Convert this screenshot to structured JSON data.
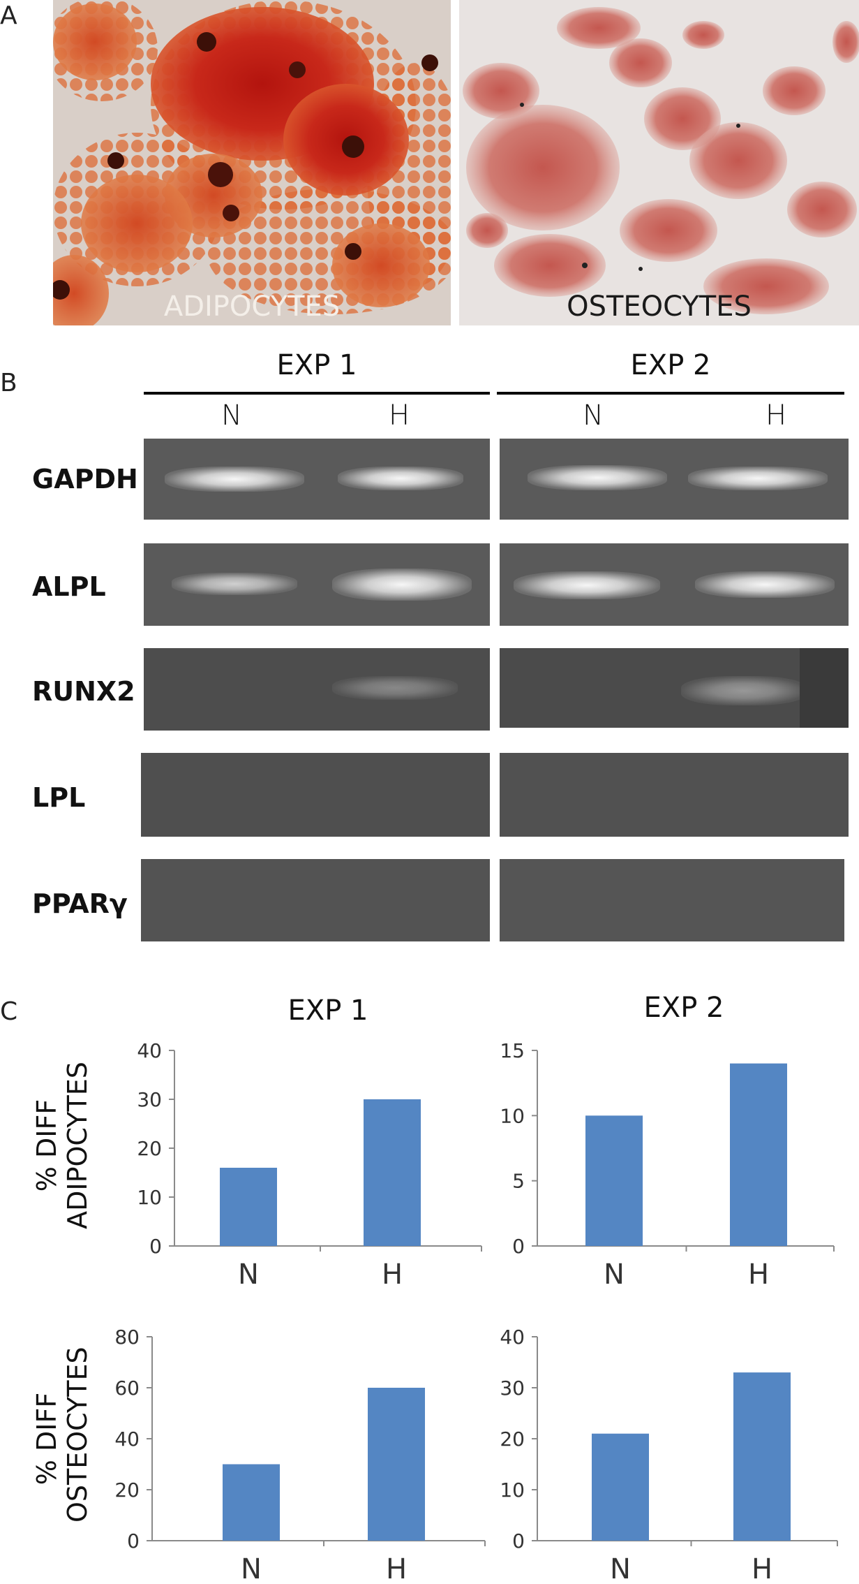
{
  "panel_a": {
    "letter": "A",
    "images": [
      {
        "label": "ADIPOCYTES",
        "label_color": "#f4efe9",
        "stain": "red oil staining of adipocytes"
      },
      {
        "label": "OSTEOCYTES",
        "label_color": "#1a1a1a",
        "stain": "alizarin red staining of osteocytes"
      }
    ]
  },
  "panel_b": {
    "letter": "B",
    "experiments": [
      {
        "title": "EXP 1",
        "lanes": [
          "N",
          "H"
        ]
      },
      {
        "title": "EXP 2",
        "lanes": [
          "N",
          "H"
        ]
      }
    ],
    "genes": [
      "GAPDH",
      "ALPL",
      "RUNX2",
      "LPL",
      "PPARγ"
    ]
  },
  "panel_c": {
    "letter": "C",
    "column_titles": [
      "EXP 1",
      "EXP 2"
    ],
    "row_labels": [
      [
        "% DIFF",
        "ADIPOCYTES"
      ],
      [
        "% DIFF",
        "OSTEOCYTES"
      ]
    ],
    "bar_color": "#5486c3"
  },
  "chart_data": [
    {
      "type": "bar",
      "title": "EXP 1",
      "ylabel": "% DIFF ADIPOCYTES",
      "categories": [
        "N",
        "H"
      ],
      "values": [
        16,
        30
      ],
      "ylim": [
        0,
        40
      ],
      "yticks": [
        0,
        10,
        20,
        30,
        40
      ]
    },
    {
      "type": "bar",
      "title": "EXP 2",
      "ylabel": "",
      "categories": [
        "N",
        "H"
      ],
      "values": [
        10,
        14
      ],
      "ylim": [
        0,
        15
      ],
      "yticks": [
        0,
        5,
        10,
        15
      ]
    },
    {
      "type": "bar",
      "title": "",
      "ylabel": "% DIFF OSTEOCYTES",
      "categories": [
        "N",
        "H"
      ],
      "values": [
        30,
        60
      ],
      "ylim": [
        0,
        80
      ],
      "yticks": [
        0,
        20,
        40,
        60,
        80
      ]
    },
    {
      "type": "bar",
      "title": "",
      "ylabel": "",
      "categories": [
        "N",
        "H"
      ],
      "values": [
        21,
        33
      ],
      "ylim": [
        0,
        40
      ],
      "yticks": [
        0,
        10,
        20,
        30,
        40
      ]
    }
  ]
}
